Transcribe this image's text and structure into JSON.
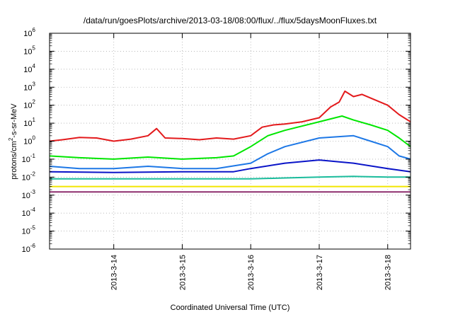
{
  "chart_data": {
    "type": "line",
    "title": "/data/run/goesPlots/archive/2013-03-18/08:00/flux/../flux/5daysMoonFluxes.txt",
    "xlabel": "Coordinated Universal Time (UTC)",
    "ylabel_parts": {
      "base": "protons/cm",
      "sup": "2",
      "rest": "-s-sr-MeV"
    },
    "yscale": "log",
    "ylim_exponents": [
      -6,
      6
    ],
    "y_tick_base": "10",
    "y_tick_exponents": [
      "-6",
      "-5",
      "-4",
      "-3",
      "-2",
      "-1",
      "0",
      "1",
      "2",
      "3",
      "4",
      "5",
      "6"
    ],
    "xlim": [
      "2013-03-13 01:30",
      "2013-03-18 08:00"
    ],
    "x_ticks": [
      "2013-3-14",
      "2013-3-15",
      "2013-3-16",
      "2013-3-17",
      "2013-3-18"
    ],
    "grid": true,
    "series": [
      {
        "color": "#e31a1c",
        "x": [
          "2013-03-13 01:30",
          "2013-03-13 06:00",
          "2013-03-13 12:00",
          "2013-03-13 18:00",
          "2013-03-14 00:00",
          "2013-03-14 06:00",
          "2013-03-14 12:00",
          "2013-03-14 15:00",
          "2013-03-14 18:00",
          "2013-03-15 00:00",
          "2013-03-15 06:00",
          "2013-03-15 12:00",
          "2013-03-15 18:00",
          "2013-03-16 00:00",
          "2013-03-16 04:00",
          "2013-03-16 08:00",
          "2013-03-16 12:00",
          "2013-03-16 18:00",
          "2013-03-17 00:00",
          "2013-03-17 04:00",
          "2013-03-17 07:00",
          "2013-03-17 09:00",
          "2013-03-17 12:00",
          "2013-03-17 15:00",
          "2013-03-17 18:00",
          "2013-03-18 00:00",
          "2013-03-18 04:00",
          "2013-03-18 08:00"
        ],
        "y": [
          1.0,
          1.2,
          1.6,
          1.5,
          1.0,
          1.3,
          2.0,
          5.0,
          1.5,
          1.4,
          1.2,
          1.5,
          1.3,
          2.0,
          6.0,
          8.0,
          9.0,
          12.0,
          20.0,
          80.0,
          150.0,
          600.0,
          300.0,
          400.0,
          250.0,
          100.0,
          30.0,
          12.0
        ]
      },
      {
        "color": "#00e600",
        "x": [
          "2013-03-13 01:30",
          "2013-03-13 12:00",
          "2013-03-14 00:00",
          "2013-03-14 12:00",
          "2013-03-15 00:00",
          "2013-03-15 12:00",
          "2013-03-15 18:00",
          "2013-03-16 00:00",
          "2013-03-16 06:00",
          "2013-03-16 12:00",
          "2013-03-17 00:00",
          "2013-03-17 08:00",
          "2013-03-17 12:00",
          "2013-03-17 18:00",
          "2013-03-18 00:00",
          "2013-03-18 04:00",
          "2013-03-18 08:00"
        ],
        "y": [
          0.15,
          0.12,
          0.1,
          0.13,
          0.1,
          0.12,
          0.15,
          0.5,
          2.0,
          4.0,
          12.0,
          25.0,
          15.0,
          8.0,
          4.0,
          1.5,
          0.5
        ]
      },
      {
        "color": "#1e78e6",
        "x": [
          "2013-03-13 01:30",
          "2013-03-13 12:00",
          "2013-03-14 00:00",
          "2013-03-14 12:00",
          "2013-03-15 00:00",
          "2013-03-15 12:00",
          "2013-03-16 00:00",
          "2013-03-16 06:00",
          "2013-03-16 12:00",
          "2013-03-17 00:00",
          "2013-03-17 12:00",
          "2013-03-17 18:00",
          "2013-03-18 00:00",
          "2013-03-18 04:00",
          "2013-03-18 08:00"
        ],
        "y": [
          0.04,
          0.03,
          0.03,
          0.04,
          0.03,
          0.03,
          0.06,
          0.2,
          0.5,
          1.5,
          2.0,
          1.0,
          0.5,
          0.15,
          0.1
        ]
      },
      {
        "color": "#0a14c8",
        "x": [
          "2013-03-13 01:30",
          "2013-03-14 00:00",
          "2013-03-15 00:00",
          "2013-03-15 18:00",
          "2013-03-16 00:00",
          "2013-03-16 12:00",
          "2013-03-17 00:00",
          "2013-03-17 12:00",
          "2013-03-18 00:00",
          "2013-03-18 08:00"
        ],
        "y": [
          0.02,
          0.018,
          0.02,
          0.02,
          0.03,
          0.06,
          0.09,
          0.06,
          0.03,
          0.02
        ]
      },
      {
        "color": "#1abc9c",
        "x": [
          "2013-03-13 01:30",
          "2013-03-14 00:00",
          "2013-03-15 00:00",
          "2013-03-16 00:00",
          "2013-03-16 12:00",
          "2013-03-17 00:00",
          "2013-03-17 12:00",
          "2013-03-18 00:00",
          "2013-03-18 08:00"
        ],
        "y": [
          0.008,
          0.008,
          0.008,
          0.008,
          0.009,
          0.01,
          0.011,
          0.01,
          0.01
        ]
      },
      {
        "color": "#f2e600",
        "x": [
          "2013-03-13 01:30",
          "2013-03-18 08:00"
        ],
        "y": [
          0.003,
          0.003
        ]
      },
      {
        "color": "#8e2f6e",
        "x": [
          "2013-03-13 01:30",
          "2013-03-18 08:00"
        ],
        "y": [
          0.0015,
          0.0015
        ]
      }
    ]
  }
}
